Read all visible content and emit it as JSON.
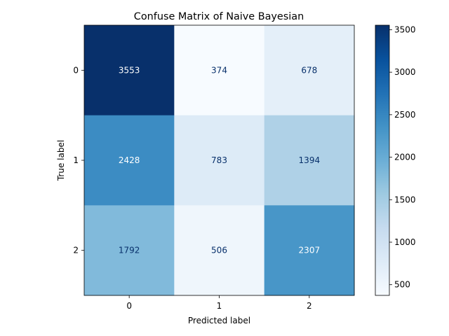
{
  "chart_data": {
    "type": "heatmap",
    "title": "Confuse Matrix of Naive Bayesian",
    "xlabel": "Predicted label",
    "ylabel": "True label",
    "x_categories": [
      "0",
      "1",
      "2"
    ],
    "y_categories": [
      "0",
      "1",
      "2"
    ],
    "matrix": [
      [
        3553,
        374,
        678
      ],
      [
        2428,
        783,
        1394
      ],
      [
        1792,
        506,
        2307
      ]
    ],
    "colormap": "Blues",
    "colorbar": {
      "range": [
        374,
        3553
      ],
      "ticks": [
        500,
        1000,
        1500,
        2000,
        2500,
        3000,
        3500
      ]
    },
    "grid": false
  }
}
